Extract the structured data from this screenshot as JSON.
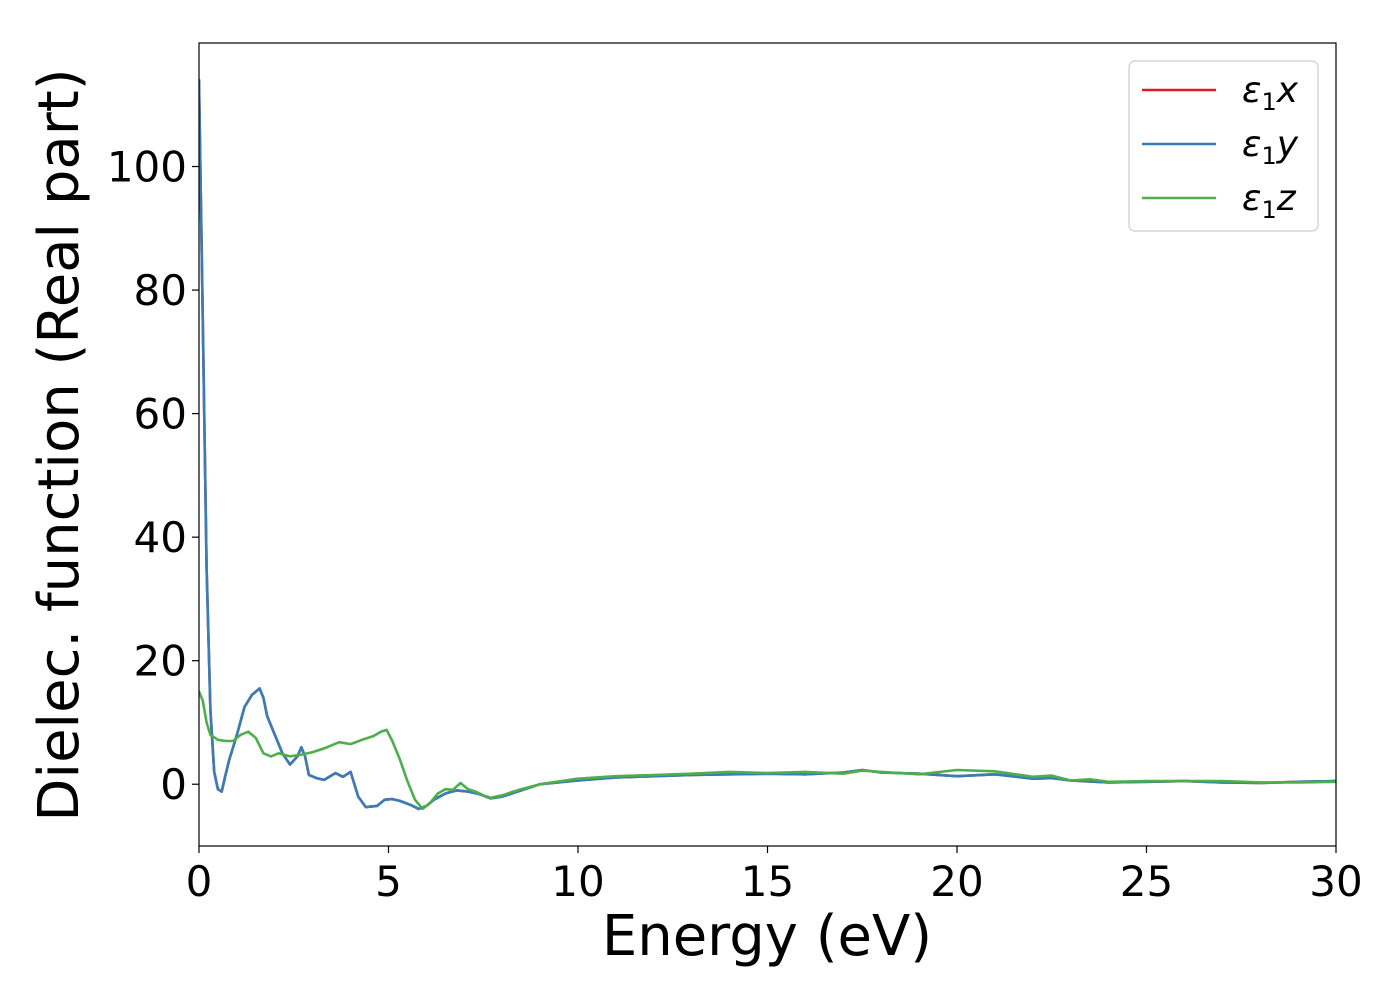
{
  "chart_data": {
    "type": "line",
    "xlabel": "Energy (eV)",
    "ylabel": "Dielec. function (Real part)",
    "xlim": [
      0,
      30
    ],
    "ylim": [
      -10,
      120
    ],
    "xticks": [
      0,
      5,
      10,
      15,
      20,
      25,
      30
    ],
    "yticks": [
      0,
      20,
      40,
      60,
      80,
      100
    ],
    "grid": false,
    "legend_position": "upper right",
    "series": [
      {
        "name": "ε1x",
        "legend_main": "ε",
        "legend_sub": "1",
        "legend_var": "x",
        "color": "#e41a1c",
        "x": [
          0.0,
          0.1,
          0.2,
          0.3,
          0.4,
          0.5,
          0.6,
          0.7,
          0.8,
          0.9,
          1.0,
          1.2,
          1.4,
          1.6,
          1.7,
          1.8,
          2.0,
          2.2,
          2.4,
          2.6,
          2.7,
          2.8,
          2.9,
          3.1,
          3.3,
          3.6,
          3.8,
          4.0,
          4.2,
          4.4,
          4.7,
          4.9,
          5.1,
          5.3,
          5.6,
          5.8,
          6.0,
          6.2,
          6.5,
          6.8,
          7.1,
          7.4,
          7.7,
          8.0,
          8.5,
          9.0,
          10.0,
          11.0,
          12.0,
          13.0,
          14.0,
          15.0,
          16.0,
          17.0,
          17.5,
          18.0,
          19.0,
          20.0,
          21.0,
          22.0,
          22.5,
          23.0,
          24.0,
          25.0,
          26.0,
          27.0,
          28.0,
          29.0,
          30.0
        ],
        "y": [
          114.0,
          75.0,
          35.0,
          12.0,
          2.0,
          -0.8,
          -1.2,
          1.5,
          4.0,
          6.0,
          8.0,
          12.5,
          14.5,
          15.5,
          14.0,
          11.0,
          8.0,
          5.0,
          3.2,
          4.5,
          6.0,
          4.5,
          1.5,
          1.0,
          0.7,
          1.8,
          1.2,
          2.0,
          -2.0,
          -3.7,
          -3.5,
          -2.5,
          -2.4,
          -2.7,
          -3.4,
          -4.0,
          -3.5,
          -2.5,
          -1.5,
          -1.0,
          -1.2,
          -1.6,
          -2.3,
          -2.0,
          -1.0,
          0.0,
          0.6,
          1.1,
          1.3,
          1.5,
          1.6,
          1.7,
          1.6,
          1.9,
          2.3,
          1.9,
          1.7,
          1.3,
          1.6,
          0.9,
          1.0,
          0.6,
          0.3,
          0.4,
          0.5,
          0.3,
          0.2,
          0.4,
          0.5
        ]
      },
      {
        "name": "ε1y",
        "legend_main": "ε",
        "legend_sub": "1",
        "legend_var": "y",
        "color": "#377eb8",
        "x": [
          0.0,
          0.1,
          0.2,
          0.3,
          0.4,
          0.5,
          0.6,
          0.7,
          0.8,
          0.9,
          1.0,
          1.2,
          1.4,
          1.6,
          1.7,
          1.8,
          2.0,
          2.2,
          2.4,
          2.6,
          2.7,
          2.8,
          2.9,
          3.1,
          3.3,
          3.6,
          3.8,
          4.0,
          4.2,
          4.4,
          4.7,
          4.9,
          5.1,
          5.3,
          5.6,
          5.8,
          6.0,
          6.2,
          6.5,
          6.8,
          7.1,
          7.4,
          7.7,
          8.0,
          8.5,
          9.0,
          10.0,
          11.0,
          12.0,
          13.0,
          14.0,
          15.0,
          16.0,
          17.0,
          17.5,
          18.0,
          19.0,
          20.0,
          21.0,
          22.0,
          22.5,
          23.0,
          24.0,
          25.0,
          26.0,
          27.0,
          28.0,
          29.0,
          30.0
        ],
        "y": [
          114.0,
          75.0,
          35.0,
          12.0,
          2.0,
          -0.8,
          -1.2,
          1.5,
          4.0,
          6.0,
          8.0,
          12.5,
          14.5,
          15.5,
          14.0,
          11.0,
          8.0,
          5.0,
          3.2,
          4.5,
          6.0,
          4.5,
          1.5,
          1.0,
          0.7,
          1.8,
          1.2,
          2.0,
          -2.0,
          -3.7,
          -3.5,
          -2.5,
          -2.4,
          -2.7,
          -3.4,
          -4.0,
          -3.5,
          -2.5,
          -1.5,
          -1.0,
          -1.2,
          -1.6,
          -2.3,
          -2.0,
          -1.0,
          0.0,
          0.6,
          1.1,
          1.3,
          1.5,
          1.6,
          1.7,
          1.6,
          1.9,
          2.3,
          1.9,
          1.7,
          1.3,
          1.6,
          0.9,
          1.0,
          0.6,
          0.3,
          0.4,
          0.5,
          0.3,
          0.2,
          0.4,
          0.5
        ]
      },
      {
        "name": "ε1z",
        "legend_main": "ε",
        "legend_sub": "1",
        "legend_var": "z",
        "color": "#4daf4a",
        "x": [
          0.0,
          0.1,
          0.2,
          0.3,
          0.5,
          0.7,
          0.9,
          1.1,
          1.3,
          1.5,
          1.7,
          1.9,
          2.1,
          2.4,
          2.7,
          3.0,
          3.3,
          3.7,
          4.0,
          4.3,
          4.6,
          4.8,
          4.95,
          5.1,
          5.3,
          5.5,
          5.7,
          5.9,
          6.1,
          6.3,
          6.5,
          6.7,
          6.9,
          7.1,
          7.3,
          7.5,
          7.7,
          8.0,
          8.5,
          9.0,
          10.0,
          11.0,
          12.0,
          13.0,
          14.0,
          15.0,
          16.0,
          17.0,
          17.5,
          18.0,
          19.0,
          20.0,
          21.0,
          22.0,
          22.5,
          23.0,
          23.5,
          24.0,
          25.0,
          26.0,
          27.0,
          28.0,
          29.0,
          30.0
        ],
        "y": [
          15.0,
          13.5,
          10.0,
          8.0,
          7.2,
          7.0,
          7.0,
          8.0,
          8.5,
          7.5,
          5.0,
          4.5,
          5.0,
          4.5,
          4.8,
          5.2,
          5.8,
          6.8,
          6.5,
          7.2,
          7.8,
          8.5,
          8.8,
          7.0,
          4.0,
          0.5,
          -2.5,
          -4.0,
          -3.0,
          -1.5,
          -0.8,
          -0.9,
          0.2,
          -0.8,
          -1.2,
          -1.8,
          -2.2,
          -1.8,
          -0.8,
          0.0,
          0.9,
          1.3,
          1.5,
          1.7,
          2.0,
          1.8,
          2.0,
          1.7,
          2.2,
          2.0,
          1.6,
          2.3,
          2.1,
          1.2,
          1.4,
          0.6,
          0.8,
          0.4,
          0.5,
          0.5,
          0.5,
          0.3,
          0.3,
          0.4
        ]
      }
    ]
  }
}
